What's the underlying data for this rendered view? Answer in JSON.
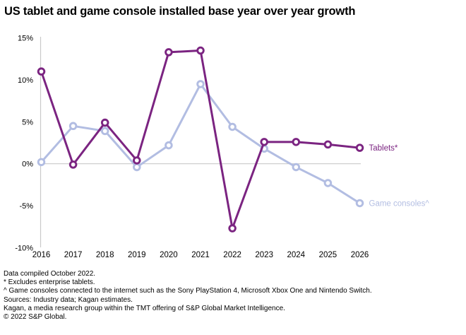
{
  "title": "US tablet and game console installed base year over year growth",
  "colors": {
    "background": "#ffffff",
    "axis": "#c9c9c9",
    "text": "#000000",
    "tablets": "#7B2481",
    "game_consoles": "#B2BDE2"
  },
  "chart_data": {
    "type": "line",
    "title": "US tablet and game console installed base year over year growth",
    "categories": [
      "2016",
      "2017",
      "2018",
      "2019",
      "2020",
      "2021",
      "2022",
      "2023",
      "2024",
      "2025",
      "2026"
    ],
    "series": [
      {
        "id": "tablets",
        "name": "Tablets",
        "label": "Tablets*",
        "color": "#7B2481",
        "values": [
          11.0,
          -0.1,
          4.9,
          0.4,
          13.3,
          13.5,
          -7.7,
          2.6,
          2.6,
          2.3,
          1.9
        ]
      },
      {
        "id": "game-consoles",
        "name": "Game consoles",
        "label": "Game consoles^",
        "color": "#B2BDE2",
        "values": [
          0.2,
          4.5,
          3.9,
          -0.4,
          2.2,
          9.5,
          4.4,
          1.8,
          -0.4,
          -2.3,
          -4.7
        ]
      }
    ],
    "y_axis": {
      "ticks": [
        "15%",
        "10%",
        "5%",
        "0%",
        "-5%",
        "-10%"
      ],
      "tick_values": [
        15,
        10,
        5,
        0,
        -5,
        -10
      ],
      "min": -10,
      "max": 15,
      "unit": "%"
    },
    "grid": "zero-line-only",
    "legend_position": "end-of-line-labels",
    "marker": "open-circle"
  },
  "footnotes": [
    "Data compiled October 2022.",
    "* Excludes enterprise tablets.",
    "^ Game consoles connected to the internet such as the Sony PlayStation 4, Microsoft Xbox One and Nintendo Switch.",
    "Sources: Industry data; Kagan estimates.",
    "Kagan, a media research group within the TMT offering of S&P Global Market Intelligence.",
    "© 2022 S&P Global."
  ]
}
